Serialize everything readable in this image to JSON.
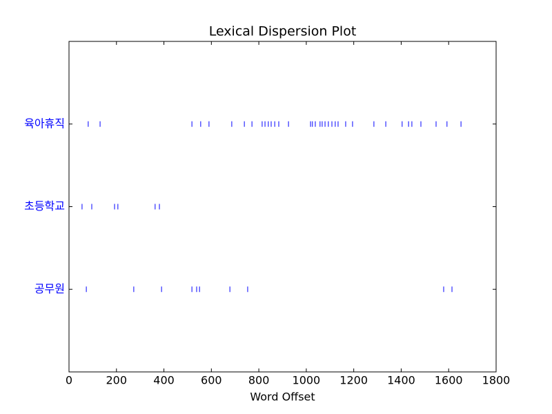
{
  "chart_data": {
    "type": "dispersion",
    "title": "Lexical Dispersion Plot",
    "xlabel": "Word Offset",
    "categories": [
      "육아휴직",
      "초등학교",
      "공무원"
    ],
    "offsets": [
      [
        81,
        131,
        518,
        555,
        590,
        686,
        739,
        771,
        814,
        826,
        840,
        852,
        867,
        884,
        925,
        1018,
        1026,
        1038,
        1058,
        1067,
        1079,
        1093,
        1108,
        1122,
        1134,
        1166,
        1195,
        1285,
        1335,
        1404,
        1431,
        1445,
        1483,
        1547,
        1593,
        1652
      ],
      [
        55,
        96,
        192,
        206,
        363,
        381
      ],
      [
        73,
        273,
        390,
        518,
        538,
        550,
        678,
        753,
        1579,
        1614
      ]
    ],
    "color": "#0000ff",
    "xlim": [
      0,
      1800
    ],
    "xticks": [
      0,
      200,
      400,
      600,
      800,
      1000,
      1200,
      1400,
      1600,
      1800
    ],
    "ylim": [
      -1,
      3
    ]
  }
}
